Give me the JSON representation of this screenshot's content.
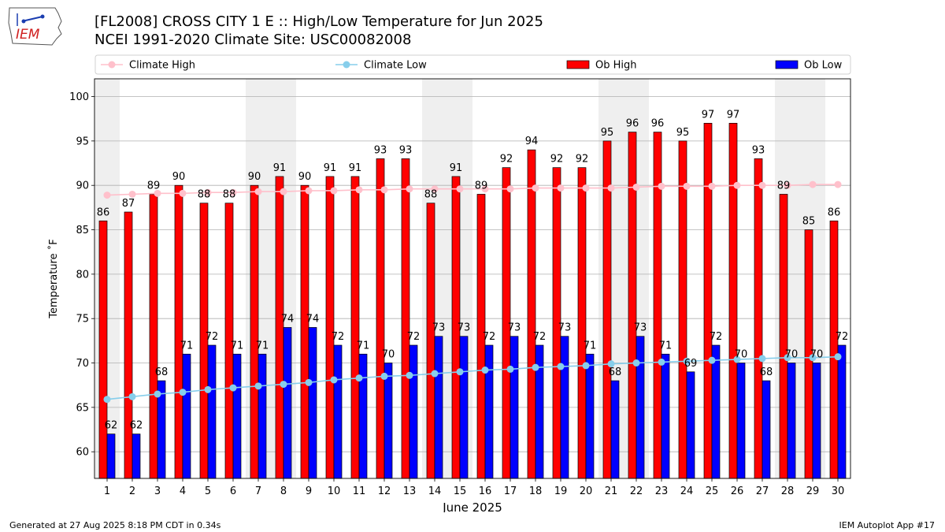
{
  "header": {
    "title_line1": "[FL2008] CROSS CITY 1 E :: High/Low Temperature for Jun 2025",
    "title_line2": "NCEI 1991-2020 Climate Site: USC00082008",
    "logo_text": "IEM"
  },
  "footer": {
    "generated": "Generated at 27 Aug 2025 8:18 PM CDT in 0.34s",
    "app": "IEM Autoplot App #17"
  },
  "colors": {
    "climate_high": "#ffc0cb",
    "climate_low": "#87ceeb",
    "ob_high": "#ff0000",
    "ob_low": "#0000ff",
    "weekend_shade": "#efefef"
  },
  "chart_data": {
    "type": "bar",
    "xlabel": "June 2025",
    "ylabel": "Temperature ˚F",
    "ylim": [
      57,
      102
    ],
    "yticks": [
      60,
      65,
      70,
      75,
      80,
      85,
      90,
      95,
      100
    ],
    "grid": true,
    "legend_position": "top",
    "categories": [
      "1",
      "2",
      "3",
      "4",
      "5",
      "6",
      "7",
      "8",
      "9",
      "10",
      "11",
      "12",
      "13",
      "14",
      "15",
      "16",
      "17",
      "18",
      "19",
      "20",
      "21",
      "22",
      "23",
      "24",
      "25",
      "26",
      "27",
      "28",
      "29",
      "30"
    ],
    "weekend_days": [
      1,
      7,
      8,
      14,
      15,
      21,
      22,
      28,
      29
    ],
    "series": [
      {
        "name": "Ob High",
        "kind": "bar",
        "values": [
          86,
          87,
          89,
          90,
          88,
          88,
          90,
          91,
          90,
          91,
          91,
          93,
          93,
          88,
          91,
          89,
          92,
          94,
          92,
          92,
          95,
          96,
          96,
          95,
          97,
          97,
          93,
          89,
          85,
          86
        ]
      },
      {
        "name": "Ob Low",
        "kind": "bar",
        "values": [
          62,
          62,
          68,
          71,
          72,
          71,
          71,
          74,
          74,
          72,
          71,
          70,
          72,
          73,
          73,
          72,
          73,
          72,
          73,
          71,
          68,
          73,
          71,
          69,
          72,
          70,
          68,
          70,
          70,
          72
        ]
      },
      {
        "name": "Climate High",
        "kind": "line",
        "values": [
          88.9,
          89.0,
          89.1,
          89.1,
          89.2,
          89.2,
          89.3,
          89.3,
          89.4,
          89.4,
          89.5,
          89.5,
          89.6,
          89.6,
          89.6,
          89.6,
          89.6,
          89.7,
          89.7,
          89.7,
          89.7,
          89.8,
          89.9,
          89.9,
          89.9,
          90.0,
          90.0,
          90.0,
          90.1,
          90.1
        ]
      },
      {
        "name": "Climate Low",
        "kind": "line",
        "values": [
          65.9,
          66.2,
          66.5,
          66.7,
          67.0,
          67.2,
          67.4,
          67.6,
          67.8,
          68.1,
          68.3,
          68.5,
          68.6,
          68.8,
          69.0,
          69.2,
          69.3,
          69.5,
          69.6,
          69.7,
          69.9,
          70.0,
          70.1,
          70.2,
          70.3,
          70.4,
          70.5,
          70.6,
          70.6,
          70.7
        ]
      }
    ]
  }
}
